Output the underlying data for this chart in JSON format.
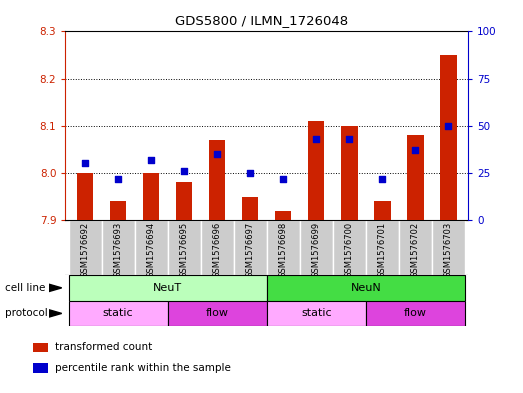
{
  "title": "GDS5800 / ILMN_1726048",
  "samples": [
    "GSM1576692",
    "GSM1576693",
    "GSM1576694",
    "GSM1576695",
    "GSM1576696",
    "GSM1576697",
    "GSM1576698",
    "GSM1576699",
    "GSM1576700",
    "GSM1576701",
    "GSM1576702",
    "GSM1576703"
  ],
  "transformed_count": [
    8.0,
    7.94,
    8.0,
    7.98,
    8.07,
    7.95,
    7.92,
    8.11,
    8.1,
    7.94,
    8.08,
    8.25
  ],
  "percentile_rank": [
    30,
    22,
    32,
    26,
    35,
    25,
    22,
    43,
    43,
    22,
    37,
    50
  ],
  "ylim_left": [
    7.9,
    8.3
  ],
  "ylim_right": [
    0,
    100
  ],
  "yticks_left": [
    7.9,
    8.0,
    8.1,
    8.2,
    8.3
  ],
  "yticks_right": [
    0,
    25,
    50,
    75,
    100
  ],
  "bar_color": "#cc2200",
  "dot_color": "#0000cc",
  "bar_bottom": 7.9,
  "cell_line_labels": [
    {
      "text": "NeuT",
      "start": 0,
      "end": 5,
      "color": "#bbffbb"
    },
    {
      "text": "NeuN",
      "start": 6,
      "end": 11,
      "color": "#44dd44"
    }
  ],
  "protocol_labels": [
    {
      "text": "static",
      "start": 0,
      "end": 2,
      "color": "#ffaaff"
    },
    {
      "text": "flow",
      "start": 3,
      "end": 5,
      "color": "#dd44dd"
    },
    {
      "text": "static",
      "start": 6,
      "end": 8,
      "color": "#ffaaff"
    },
    {
      "text": "flow",
      "start": 9,
      "end": 11,
      "color": "#dd44dd"
    }
  ],
  "legend_items": [
    {
      "label": "transformed count",
      "color": "#cc2200"
    },
    {
      "label": "percentile rank within the sample",
      "color": "#0000cc"
    }
  ],
  "grid_color": "black",
  "bg_color": "#ffffff",
  "axis_color_left": "#cc2200",
  "axis_color_right": "#0000cc",
  "sample_bg_color": "#cccccc",
  "sample_border_color": "#ffffff"
}
